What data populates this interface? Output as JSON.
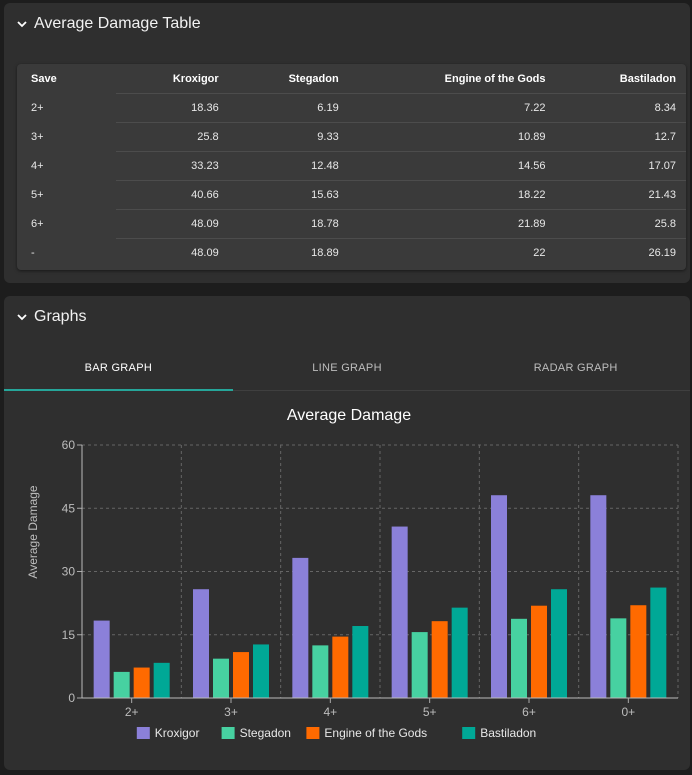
{
  "table_panel": {
    "title": "Average Damage Table",
    "headers": [
      "Save",
      "Kroxigor",
      "Stegadon",
      "Engine of the Gods",
      "Bastiladon"
    ],
    "rows": [
      [
        "2+",
        "18.36",
        "6.19",
        "7.22",
        "8.34"
      ],
      [
        "3+",
        "25.8",
        "9.33",
        "10.89",
        "12.7"
      ],
      [
        "4+",
        "33.23",
        "12.48",
        "14.56",
        "17.07"
      ],
      [
        "5+",
        "40.66",
        "15.63",
        "18.22",
        "21.43"
      ],
      [
        "6+",
        "48.09",
        "18.78",
        "21.89",
        "25.8"
      ],
      [
        "-",
        "48.09",
        "18.89",
        "22",
        "26.19"
      ]
    ]
  },
  "graphs_panel": {
    "title": "Graphs",
    "tabs": [
      "BAR GRAPH",
      "LINE GRAPH",
      "RADAR GRAPH"
    ],
    "active_tab": 0
  },
  "colors": {
    "Kroxigor": "#8b80d9",
    "Stegadon": "#47d1a1",
    "Engine of the Gods": "#ff6a00",
    "Bastiladon": "#00a896"
  },
  "chart_data": {
    "type": "bar",
    "title": "Average Damage",
    "xlabel": "",
    "ylabel": "Average Damage",
    "categories": [
      "2+",
      "3+",
      "4+",
      "5+",
      "6+",
      "0+"
    ],
    "ylim": [
      0,
      60
    ],
    "yticks": [
      0,
      15,
      30,
      45,
      60
    ],
    "grid": true,
    "legend_position": "bottom",
    "series": [
      {
        "name": "Kroxigor",
        "values": [
          18.36,
          25.8,
          33.23,
          40.66,
          48.09,
          48.09
        ]
      },
      {
        "name": "Stegadon",
        "values": [
          6.19,
          9.33,
          12.48,
          15.63,
          18.78,
          18.89
        ]
      },
      {
        "name": "Engine of the Gods",
        "values": [
          7.22,
          10.89,
          14.56,
          18.22,
          21.89,
          22
        ]
      },
      {
        "name": "Bastiladon",
        "values": [
          8.34,
          12.7,
          17.07,
          21.43,
          25.8,
          26.19
        ]
      }
    ]
  }
}
